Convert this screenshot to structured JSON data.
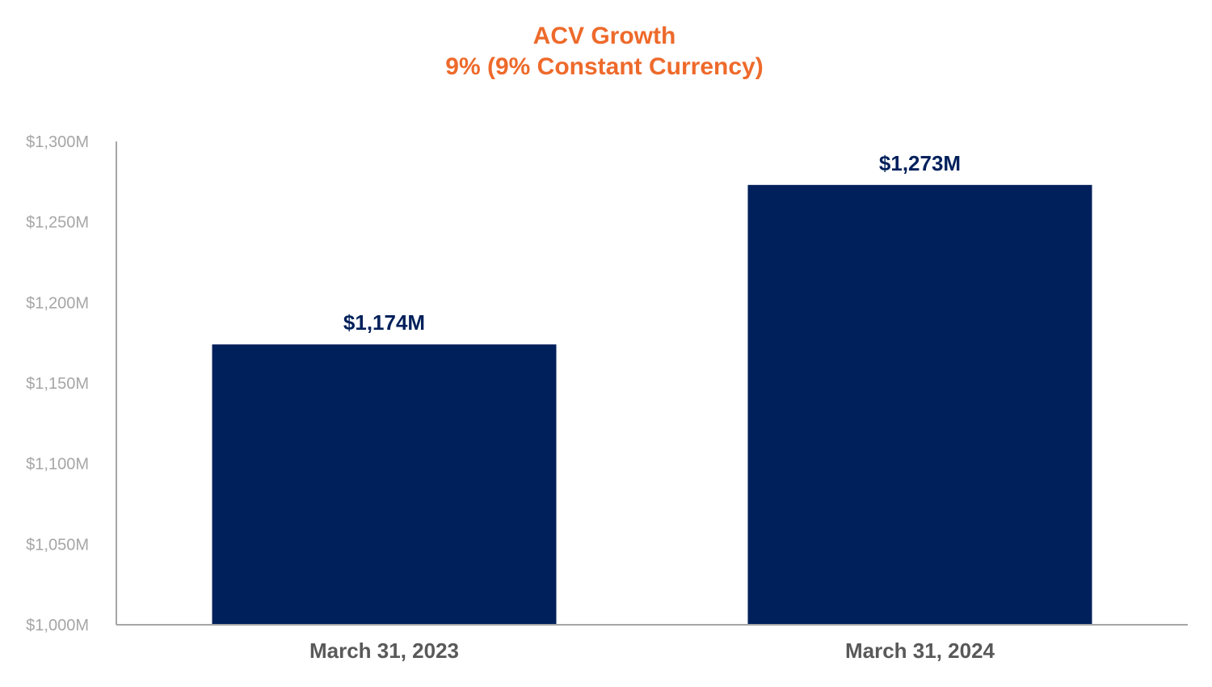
{
  "chart_data": {
    "type": "bar",
    "title": "ACV Growth",
    "subtitle": "9% (9% Constant Currency)",
    "categories": [
      "March 31, 2023",
      "March 31, 2024"
    ],
    "values": [
      1174,
      1273
    ],
    "data_labels": [
      "$1,174M",
      "$1,273M"
    ],
    "ylim": [
      1000,
      1300
    ],
    "yticks": [
      1000,
      1050,
      1100,
      1150,
      1200,
      1250,
      1300
    ],
    "ytick_labels": [
      "$1,000M",
      "$1,050M",
      "$1,100M",
      "$1,150M",
      "$1,200M",
      "$1,250M",
      "$1,300M"
    ],
    "xlabel": "",
    "ylabel": "",
    "grid": false,
    "legend": "none",
    "colors": {
      "bar": "#00205b",
      "title": "#ee6a2b",
      "axis": "#a6a6a6",
      "tick_label": "#a6a6a6",
      "category_label": "#595959",
      "data_label": "#00205b"
    }
  }
}
